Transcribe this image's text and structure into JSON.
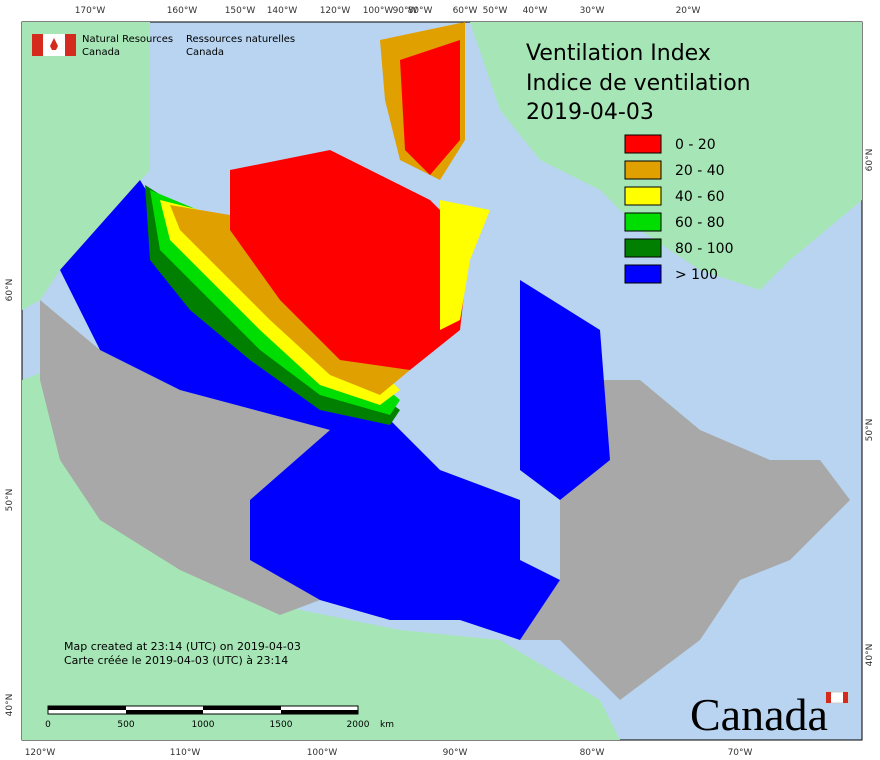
{
  "header": {
    "agency_en": [
      "Natural Resources",
      "Canada"
    ],
    "agency_fr": [
      "Ressources naturelles",
      "Canada"
    ]
  },
  "title": [
    "Ventilation Index",
    "Indice de ventilation"
  ],
  "date": "2019-04-03",
  "legend": [
    {
      "label": "0 - 20",
      "color": "#ff0000"
    },
    {
      "label": "20 - 40",
      "color": "#e0a000"
    },
    {
      "label": "40 - 60",
      "color": "#ffff00"
    },
    {
      "label": "60 - 80",
      "color": "#00dd00"
    },
    {
      "label": "80 - 100",
      "color": "#007f00"
    },
    {
      "label": "> 100",
      "color": "#0000ff"
    }
  ],
  "notes": [
    "Map created at 23:14 (UTC) on 2019-04-03",
    "Carte créée le 2019-04-03 (UTC) à 23:14"
  ],
  "scale_bar": {
    "labels": [
      "0",
      "500",
      "1000",
      "1500",
      "2000"
    ],
    "unit": "km"
  },
  "graticule": {
    "top": [
      "170°W",
      "160°W",
      "150°W",
      "140°W",
      "120°W",
      "100°W",
      "90°W",
      "80°W",
      "60°W",
      "50°W",
      "40°W",
      "30°W",
      "20°W"
    ],
    "bottom": [
      "120°W",
      "110°W",
      "100°W",
      "90°W",
      "80°W",
      "70°W"
    ],
    "left": [
      "60°N",
      "50°N",
      "40°N"
    ],
    "right": [
      "60°N",
      "50°N",
      "40°N"
    ]
  },
  "wordmark": "Canada"
}
